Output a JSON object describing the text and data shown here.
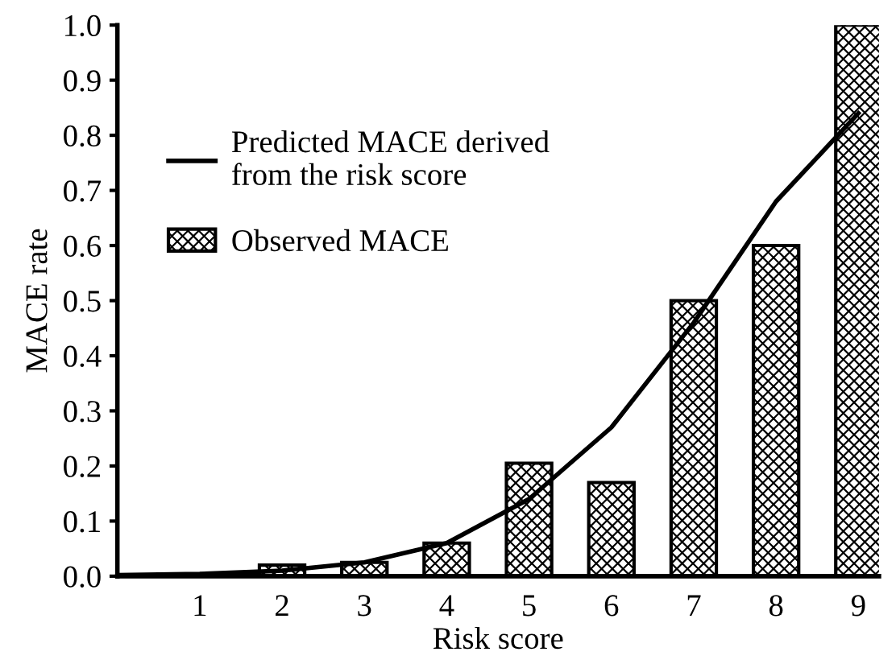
{
  "chart_data": {
    "type": "bar",
    "xlabel": "Risk score",
    "ylabel": "MACE rate",
    "x": [
      1,
      2,
      3,
      4,
      5,
      6,
      7,
      8,
      9
    ],
    "series": [
      {
        "name": "Predicted MACE derived\nfrom the risk score",
        "type": "line",
        "color": "#000000",
        "x": [
          0,
          1,
          2,
          3,
          4,
          5,
          6,
          7,
          8,
          9
        ],
        "values": [
          0.002,
          0.004,
          0.01,
          0.025,
          0.06,
          0.14,
          0.27,
          0.46,
          0.68,
          0.84
        ]
      },
      {
        "name": "Observed MACE",
        "color": "#000000",
        "values": [
          0.002,
          0.02,
          0.025,
          0.06,
          0.205,
          0.17,
          0.5,
          0.6,
          1.0
        ]
      }
    ],
    "xlim": [
      0,
      9.25
    ],
    "xticks": [
      1,
      2,
      3,
      4,
      5,
      6,
      7,
      8,
      9
    ],
    "ylim": [
      0,
      1.0
    ],
    "yticks": [
      {
        "value": 0,
        "label": "0.0"
      },
      0.1,
      0.2,
      0.3,
      0.4,
      0.5,
      0.6,
      0.7,
      0.8,
      0.9,
      {
        "value": 1,
        "label": "1.0"
      }
    ],
    "grid": false,
    "legend": "top left",
    "line_style": "solid",
    "marker": "none"
  }
}
